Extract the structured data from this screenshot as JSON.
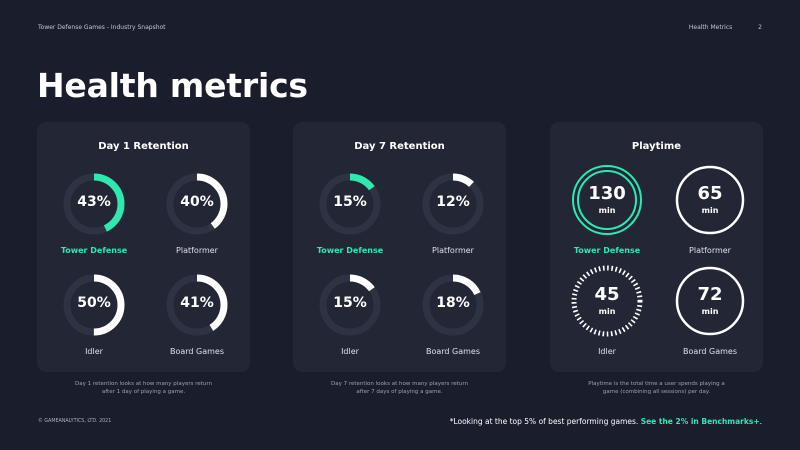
{
  "header": {
    "breadcrumb": "Tower Defense Games - Industry Snapshot",
    "section": "Health Metrics",
    "page_number": "2"
  },
  "page_title": "Health metrics",
  "colors": {
    "accent": "#2ee8b0",
    "track": "#2e3344",
    "background": "#1a1d2b",
    "card": "#222635"
  },
  "cards": [
    {
      "title": "Day 1 Retention",
      "caption_line1": "Day 1 retention looks at how many players return",
      "caption_line2": "after 1 day of playing a game.",
      "items": [
        {
          "genre": "Tower Defense",
          "value": "43%",
          "fraction": 0.43,
          "highlight": true
        },
        {
          "genre": "Platformer",
          "value": "40%",
          "fraction": 0.4,
          "highlight": false
        },
        {
          "genre": "Idler",
          "value": "50%",
          "fraction": 0.5,
          "highlight": false
        },
        {
          "genre": "Board Games",
          "value": "41%",
          "fraction": 0.41,
          "highlight": false
        }
      ]
    },
    {
      "title": "Day 7 Retention",
      "caption_line1": "Day 7 retention looks at how many players return",
      "caption_line2": "after 7 days of playing a game.",
      "items": [
        {
          "genre": "Tower Defense",
          "value": "15%",
          "fraction": 0.15,
          "highlight": true
        },
        {
          "genre": "Platformer",
          "value": "12%",
          "fraction": 0.12,
          "highlight": false
        },
        {
          "genre": "Idler",
          "value": "15%",
          "fraction": 0.15,
          "highlight": false
        },
        {
          "genre": "Board Games",
          "value": "18%",
          "fraction": 0.18,
          "highlight": false
        }
      ]
    },
    {
      "title": "Playtime",
      "caption_line1": "Playtime is the total time a user spends playing a",
      "caption_line2": "game (combining all sessions) per day.",
      "items": [
        {
          "genre": "Tower Defense",
          "value": "130",
          "unit": "min",
          "highlight": true,
          "style": "double-ring"
        },
        {
          "genre": "Platformer",
          "value": "65",
          "unit": "min",
          "highlight": false,
          "style": "ring"
        },
        {
          "genre": "Idler",
          "value": "45",
          "unit": "min",
          "highlight": false,
          "style": "dashed-ring"
        },
        {
          "genre": "Board Games",
          "value": "72",
          "unit": "min",
          "highlight": false,
          "style": "ring"
        }
      ]
    }
  ],
  "footer": {
    "copyright": "© GAMEANALYTICS, LTD. 2021",
    "note": "*Looking at the top 5% of best performing games.",
    "link": "See the 2% in Benchmarks+"
  }
}
